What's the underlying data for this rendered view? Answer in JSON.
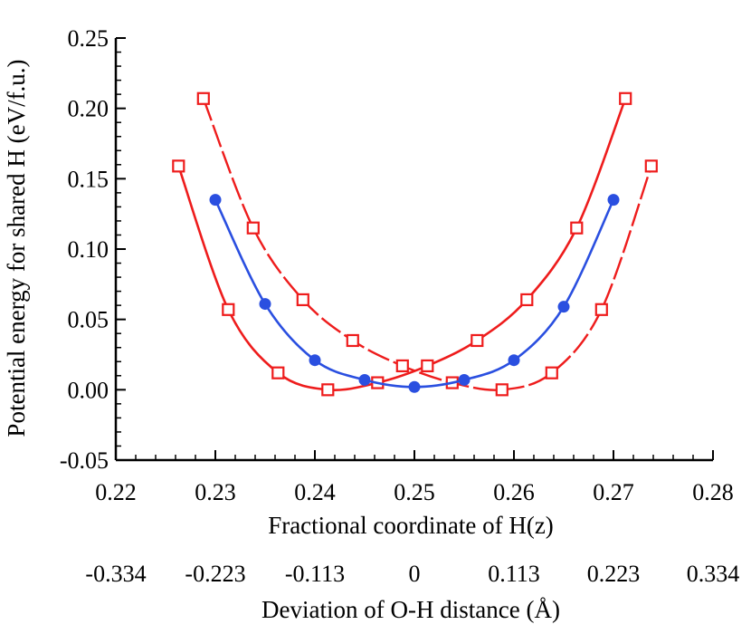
{
  "chart_data": {
    "type": "line",
    "title": "",
    "xlabel": "Fractional coordinate of H(z)",
    "ylabel": "Potential energy for shared H (eV/f.u.)",
    "secondary_xlabel": "Deviation of O-H distance (Å)",
    "xlim": [
      0.22,
      0.28
    ],
    "ylim": [
      -0.05,
      0.25
    ],
    "x_ticks": [
      0.22,
      0.23,
      0.24,
      0.25,
      0.26,
      0.27,
      0.28
    ],
    "x_tick_labels": [
      "0.22",
      "0.23",
      "0.24",
      "0.25",
      "0.26",
      "0.27",
      "0.28"
    ],
    "y_ticks": [
      -0.05,
      0.0,
      0.05,
      0.1,
      0.15,
      0.2,
      0.25
    ],
    "y_tick_labels": [
      "-0.05",
      "0.00",
      "0.05",
      "0.10",
      "0.15",
      "0.20",
      "0.25"
    ],
    "secondary_x_ticks": [
      0.22,
      0.23,
      0.24,
      0.25,
      0.26,
      0.27,
      0.28
    ],
    "secondary_x_tick_labels": [
      "-0.334",
      "-0.223",
      "-0.113",
      "0",
      "0.113",
      "0.223",
      "0.334"
    ],
    "grid": false,
    "series": [
      {
        "name": "red solid",
        "color": "#ee1c1c",
        "marker": "open-square",
        "line": "solid",
        "x": [
          0.2263,
          0.2313,
          0.2363,
          0.2413,
          0.2463,
          0.2513,
          0.2563,
          0.2613,
          0.2663,
          0.2712
        ],
        "y": [
          0.159,
          0.057,
          0.012,
          0.0,
          0.005,
          0.017,
          0.035,
          0.064,
          0.115,
          0.207
        ]
      },
      {
        "name": "red dashed",
        "color": "#ee1c1c",
        "marker": "open-square",
        "line": "dashed",
        "x": [
          0.2288,
          0.2338,
          0.2388,
          0.2438,
          0.2488,
          0.2538,
          0.2588,
          0.2638,
          0.2688,
          0.2738
        ],
        "y": [
          0.207,
          0.115,
          0.064,
          0.035,
          0.017,
          0.005,
          0.0,
          0.012,
          0.057,
          0.159
        ]
      },
      {
        "name": "blue",
        "color": "#2a4fe0",
        "marker": "filled-circle",
        "line": "solid",
        "x": [
          0.23,
          0.235,
          0.24,
          0.245,
          0.25,
          0.255,
          0.26,
          0.265,
          0.27
        ],
        "y": [
          0.135,
          0.061,
          0.021,
          0.007,
          0.002,
          0.007,
          0.021,
          0.059,
          0.135
        ]
      }
    ]
  }
}
